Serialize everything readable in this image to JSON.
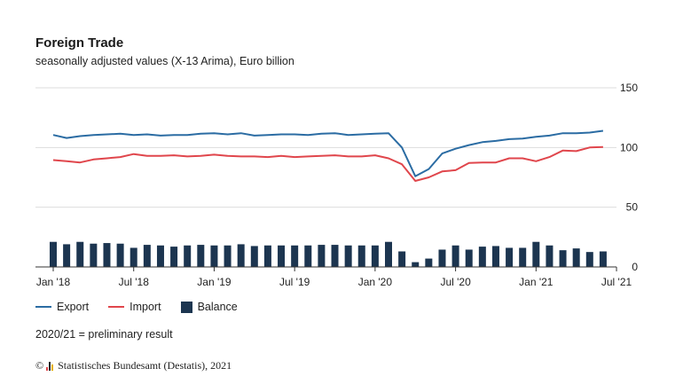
{
  "header": {
    "title": "Foreign Trade",
    "subtitle": "seasonally adjusted values (X-13 Arima), Euro billion"
  },
  "legend": {
    "export_label": "Export",
    "import_label": "Import",
    "balance_label": "Balance"
  },
  "note": "2020/21 = preliminary result",
  "source": {
    "copyright": "©",
    "text": "Statistisches Bundesamt (Destatis), 2021"
  },
  "colors": {
    "export": "#2b6ca3",
    "import": "#e0464c",
    "balance": "#1c3550",
    "grid": "#dddddd"
  },
  "chart_data": {
    "type": "bar+line",
    "title": "Foreign Trade",
    "subtitle": "seasonally adjusted values (X-13 Arima), Euro billion",
    "ylim": [
      0,
      150
    ],
    "yticks": [
      0,
      50,
      100,
      150
    ],
    "y_axis_position": "right",
    "grid": true,
    "legend_position": "bottom-left",
    "xtick_labels": [
      "Jan '18",
      "Jul '18",
      "Jan '19",
      "Jul '19",
      "Jan '20",
      "Jul '20",
      "Jan '21",
      "Jul '21"
    ],
    "x": [
      "2018-01",
      "2018-02",
      "2018-03",
      "2018-04",
      "2018-05",
      "2018-06",
      "2018-07",
      "2018-08",
      "2018-09",
      "2018-10",
      "2018-11",
      "2018-12",
      "2019-01",
      "2019-02",
      "2019-03",
      "2019-04",
      "2019-05",
      "2019-06",
      "2019-07",
      "2019-08",
      "2019-09",
      "2019-10",
      "2019-11",
      "2019-12",
      "2020-01",
      "2020-02",
      "2020-03",
      "2020-04",
      "2020-05",
      "2020-06",
      "2020-07",
      "2020-08",
      "2020-09",
      "2020-10",
      "2020-11",
      "2020-12",
      "2021-01",
      "2021-02",
      "2021-03",
      "2021-04",
      "2021-05",
      "2021-06"
    ],
    "series": [
      {
        "name": "Export",
        "kind": "line",
        "values": [
          110.5,
          108,
          109.5,
          110.5,
          111,
          111.5,
          110.5,
          111,
          110,
          110.5,
          110.5,
          111.5,
          112,
          111,
          112,
          110,
          110.5,
          111,
          111,
          110.5,
          111.5,
          112,
          110.5,
          111,
          111.5,
          112,
          100,
          76,
          82,
          95,
          99,
          102,
          104.5,
          105.5,
          107,
          107.5,
          109,
          110,
          112,
          112,
          112.5,
          114
        ]
      },
      {
        "name": "Import",
        "kind": "line",
        "values": [
          89.5,
          88.5,
          87.5,
          90,
          91,
          92,
          94.5,
          93,
          93,
          93.5,
          92.5,
          93,
          94,
          93,
          92.5,
          92.5,
          92,
          93,
          92,
          92.5,
          93,
          93.5,
          92.5,
          92.5,
          93.5,
          91,
          86,
          72,
          75,
          80,
          81,
          87,
          87.5,
          87.5,
          91,
          91,
          88.5,
          92,
          97.5,
          97,
          100,
          100.5
        ]
      },
      {
        "name": "Balance",
        "kind": "bar",
        "values": [
          21,
          19,
          21,
          19.5,
          20,
          19.5,
          16,
          18.5,
          18,
          17,
          18,
          18.5,
          18,
          18,
          19,
          17.5,
          18,
          18,
          18,
          18,
          18.5,
          18.5,
          18,
          18,
          18,
          21,
          13,
          4,
          7,
          14.5,
          18,
          14.5,
          17,
          17.5,
          16,
          16,
          21,
          18,
          14,
          15.5,
          12.5,
          13
        ]
      }
    ]
  }
}
